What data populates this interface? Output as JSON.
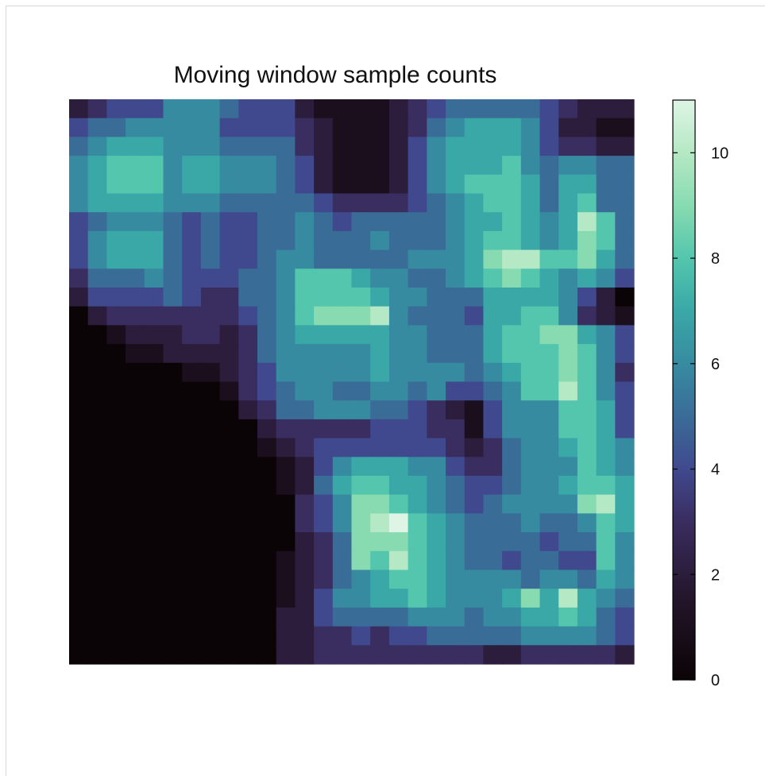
{
  "chart_data": {
    "type": "heatmap",
    "title": "Moving window sample counts",
    "nrows": 30,
    "ncols": 30,
    "value_range": [
      0,
      11
    ],
    "colorbar": {
      "ticks": [
        0,
        2,
        4,
        6,
        8,
        10
      ],
      "tick_labels": [
        "0",
        "2",
        "4",
        "6",
        "8",
        "10"
      ],
      "position": "right"
    },
    "colormap": [
      {
        "v": 0,
        "color": "#0b0406"
      },
      {
        "v": 1.5,
        "color": "#231529"
      },
      {
        "v": 3,
        "color": "#3a2d60"
      },
      {
        "v": 4,
        "color": "#40498e"
      },
      {
        "v": 5,
        "color": "#3a6c98"
      },
      {
        "v": 6,
        "color": "#378ba0"
      },
      {
        "v": 7,
        "color": "#3aa8a7"
      },
      {
        "v": 8,
        "color": "#54c6ad"
      },
      {
        "v": 9,
        "color": "#88dbb1"
      },
      {
        "v": 10,
        "color": "#b5e8c4"
      },
      {
        "v": 11,
        "color": "#def5e5"
      }
    ],
    "grid": [
      [
        2,
        3,
        4,
        4,
        4,
        6,
        6,
        6,
        5,
        4,
        4,
        4,
        2,
        1,
        1,
        1,
        1,
        2,
        3,
        4,
        5,
        5,
        5,
        5,
        5,
        4,
        3,
        2,
        2,
        2
      ],
      [
        4,
        5,
        5,
        6,
        6,
        6,
        6,
        6,
        4,
        4,
        4,
        4,
        3,
        2,
        1,
        1,
        1,
        2,
        3,
        5,
        6,
        7,
        7,
        7,
        6,
        4,
        2,
        2,
        1,
        1
      ],
      [
        5,
        6,
        7,
        7,
        7,
        6,
        6,
        6,
        5,
        5,
        5,
        5,
        3,
        2,
        1,
        1,
        1,
        2,
        4,
        6,
        7,
        7,
        7,
        7,
        6,
        4,
        3,
        3,
        2,
        2
      ],
      [
        6,
        7,
        8,
        8,
        8,
        6,
        7,
        7,
        6,
        6,
        6,
        5,
        4,
        2,
        1,
        1,
        1,
        2,
        4,
        6,
        7,
        7,
        7,
        8,
        6,
        5,
        6,
        6,
        5,
        5
      ],
      [
        6,
        7,
        8,
        8,
        8,
        6,
        7,
        7,
        6,
        6,
        6,
        5,
        4,
        2,
        1,
        1,
        1,
        2,
        4,
        6,
        7,
        8,
        8,
        8,
        7,
        5,
        7,
        7,
        5,
        5
      ],
      [
        6,
        7,
        7,
        7,
        7,
        6,
        6,
        6,
        5,
        5,
        5,
        5,
        5,
        4,
        3,
        3,
        3,
        3,
        4,
        5,
        6,
        7,
        8,
        8,
        7,
        5,
        7,
        8,
        5,
        5
      ],
      [
        4,
        5,
        6,
        6,
        6,
        5,
        4,
        5,
        4,
        4,
        5,
        5,
        6,
        5,
        4,
        5,
        5,
        5,
        5,
        5,
        6,
        7,
        7,
        8,
        7,
        6,
        7,
        10,
        8,
        5
      ],
      [
        4,
        6,
        7,
        7,
        7,
        5,
        4,
        5,
        4,
        4,
        5,
        5,
        6,
        5,
        5,
        5,
        6,
        5,
        5,
        5,
        6,
        7,
        8,
        8,
        7,
        6,
        7,
        9,
        8,
        5
      ],
      [
        4,
        6,
        7,
        7,
        7,
        5,
        4,
        5,
        4,
        4,
        5,
        6,
        6,
        5,
        5,
        5,
        5,
        5,
        6,
        6,
        6,
        7,
        9,
        10,
        10,
        8,
        8,
        9,
        7,
        5
      ],
      [
        3,
        5,
        5,
        5,
        6,
        5,
        4,
        4,
        4,
        5,
        5,
        6,
        8,
        8,
        8,
        7,
        6,
        6,
        5,
        5,
        6,
        7,
        8,
        9,
        8,
        7,
        6,
        7,
        6,
        4
      ],
      [
        2,
        4,
        4,
        4,
        4,
        5,
        4,
        3,
        3,
        5,
        5,
        6,
        8,
        8,
        8,
        8,
        7,
        6,
        6,
        5,
        5,
        5,
        7,
        7,
        7,
        7,
        6,
        4,
        2,
        0
      ],
      [
        0,
        2,
        3,
        3,
        3,
        3,
        3,
        3,
        3,
        4,
        5,
        6,
        8,
        9,
        9,
        9,
        10,
        6,
        5,
        5,
        5,
        4,
        7,
        7,
        8,
        8,
        6,
        3,
        2,
        1
      ],
      [
        0,
        0,
        1,
        2,
        2,
        2,
        3,
        3,
        2,
        3,
        5,
        6,
        7,
        7,
        7,
        7,
        7,
        6,
        6,
        5,
        5,
        5,
        7,
        8,
        8,
        9,
        9,
        7,
        6,
        4
      ],
      [
        0,
        0,
        0,
        1,
        1,
        2,
        2,
        2,
        2,
        3,
        5,
        6,
        6,
        6,
        6,
        6,
        7,
        6,
        6,
        5,
        5,
        5,
        7,
        8,
        8,
        8,
        9,
        8,
        6,
        4
      ],
      [
        0,
        0,
        0,
        0,
        0,
        0,
        1,
        1,
        2,
        3,
        4,
        6,
        6,
        6,
        6,
        6,
        7,
        6,
        6,
        6,
        6,
        5,
        6,
        7,
        8,
        8,
        9,
        8,
        6,
        3
      ],
      [
        0,
        0,
        0,
        0,
        0,
        0,
        0,
        0,
        1,
        3,
        4,
        5,
        6,
        6,
        5,
        5,
        6,
        6,
        5,
        6,
        4,
        4,
        5,
        6,
        8,
        8,
        10,
        8,
        6,
        4
      ],
      [
        0,
        0,
        0,
        0,
        0,
        0,
        0,
        0,
        0,
        2,
        3,
        5,
        5,
        6,
        6,
        6,
        5,
        5,
        4,
        3,
        2,
        1,
        4,
        6,
        6,
        6,
        8,
        8,
        7,
        4
      ],
      [
        0,
        0,
        0,
        0,
        0,
        0,
        0,
        0,
        0,
        0,
        2,
        3,
        3,
        3,
        3,
        3,
        4,
        4,
        4,
        3,
        3,
        1,
        4,
        6,
        6,
        6,
        8,
        8,
        7,
        4
      ],
      [
        0,
        0,
        0,
        0,
        0,
        0,
        0,
        0,
        0,
        0,
        1,
        2,
        3,
        4,
        4,
        4,
        4,
        4,
        4,
        4,
        3,
        2,
        3,
        5,
        6,
        6,
        7,
        8,
        7,
        6
      ],
      [
        0,
        0,
        0,
        0,
        0,
        0,
        0,
        0,
        0,
        0,
        0,
        1,
        2,
        4,
        6,
        7,
        7,
        7,
        6,
        6,
        4,
        3,
        3,
        5,
        6,
        6,
        6,
        8,
        7,
        6
      ],
      [
        0,
        0,
        0,
        0,
        0,
        0,
        0,
        0,
        0,
        0,
        0,
        1,
        2,
        5,
        7,
        8,
        8,
        7,
        7,
        6,
        5,
        4,
        4,
        5,
        6,
        6,
        7,
        8,
        8,
        7
      ],
      [
        0,
        0,
        0,
        0,
        0,
        0,
        0,
        0,
        0,
        0,
        0,
        0,
        3,
        4,
        6,
        9,
        9,
        8,
        7,
        6,
        5,
        4,
        5,
        6,
        6,
        6,
        6,
        9,
        10,
        7
      ],
      [
        0,
        0,
        0,
        0,
        0,
        0,
        0,
        0,
        0,
        0,
        0,
        0,
        3,
        4,
        6,
        9,
        10,
        11,
        8,
        7,
        6,
        5,
        5,
        5,
        6,
        5,
        5,
        6,
        8,
        7
      ],
      [
        0,
        0,
        0,
        0,
        0,
        0,
        0,
        0,
        0,
        0,
        0,
        0,
        2,
        3,
        5,
        9,
        9,
        9,
        8,
        7,
        6,
        5,
        5,
        5,
        5,
        4,
        5,
        5,
        8,
        6
      ],
      [
        0,
        0,
        0,
        0,
        0,
        0,
        0,
        0,
        0,
        0,
        0,
        1,
        2,
        3,
        5,
        9,
        8,
        10,
        8,
        7,
        6,
        5,
        5,
        4,
        5,
        5,
        4,
        4,
        8,
        6
      ],
      [
        0,
        0,
        0,
        0,
        0,
        0,
        0,
        0,
        0,
        0,
        0,
        1,
        2,
        3,
        5,
        6,
        7,
        8,
        8,
        7,
        6,
        6,
        6,
        6,
        5,
        6,
        6,
        5,
        7,
        6
      ],
      [
        0,
        0,
        0,
        0,
        0,
        0,
        0,
        0,
        0,
        0,
        0,
        1,
        2,
        4,
        6,
        6,
        7,
        7,
        8,
        7,
        6,
        6,
        6,
        7,
        9,
        7,
        10,
        7,
        6,
        5
      ],
      [
        0,
        0,
        0,
        0,
        0,
        0,
        0,
        0,
        0,
        0,
        0,
        2,
        2,
        4,
        5,
        5,
        5,
        5,
        6,
        6,
        6,
        5,
        6,
        6,
        7,
        7,
        8,
        7,
        5,
        4
      ],
      [
        0,
        0,
        0,
        0,
        0,
        0,
        0,
        0,
        0,
        0,
        0,
        2,
        2,
        3,
        3,
        4,
        3,
        4,
        4,
        5,
        5,
        5,
        5,
        5,
        6,
        6,
        6,
        6,
        5,
        4
      ],
      [
        0,
        0,
        0,
        0,
        0,
        0,
        0,
        0,
        0,
        0,
        0,
        2,
        2,
        3,
        3,
        3,
        3,
        3,
        3,
        3,
        3,
        3,
        2,
        2,
        3,
        3,
        3,
        3,
        3,
        2
      ]
    ]
  }
}
